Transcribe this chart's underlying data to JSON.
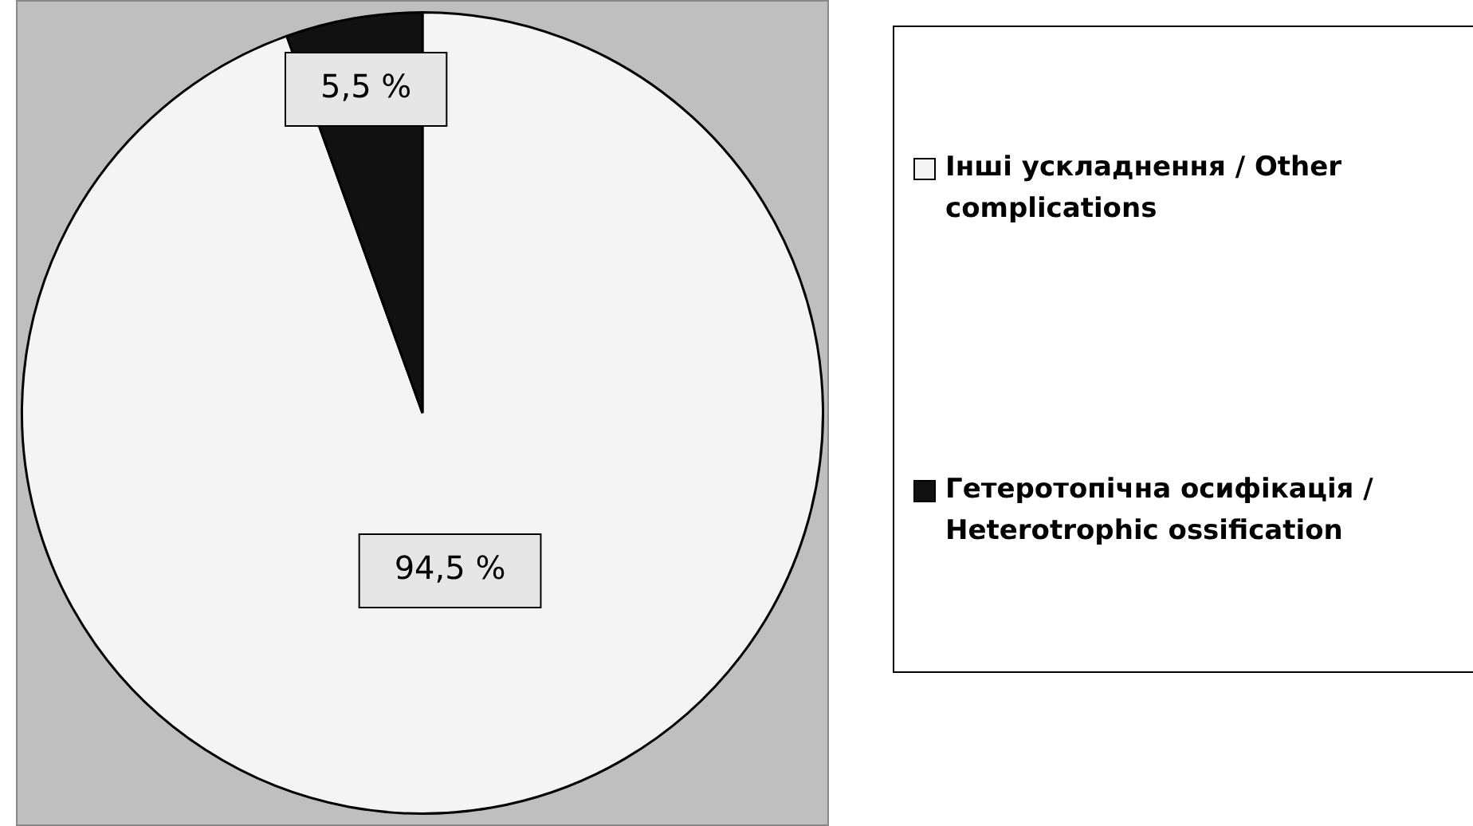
{
  "chart_data": {
    "type": "pie",
    "categories": [
      "Інші ускладнення / Other complications",
      "Гетеротопічна осифікація / Heterotrophic ossification"
    ],
    "values": [
      94.5,
      5.5
    ],
    "colors": [
      "#f4f4f4",
      "#111111"
    ],
    "value_labels": [
      "94,5 %",
      "5,5 %"
    ],
    "legend": "right"
  }
}
